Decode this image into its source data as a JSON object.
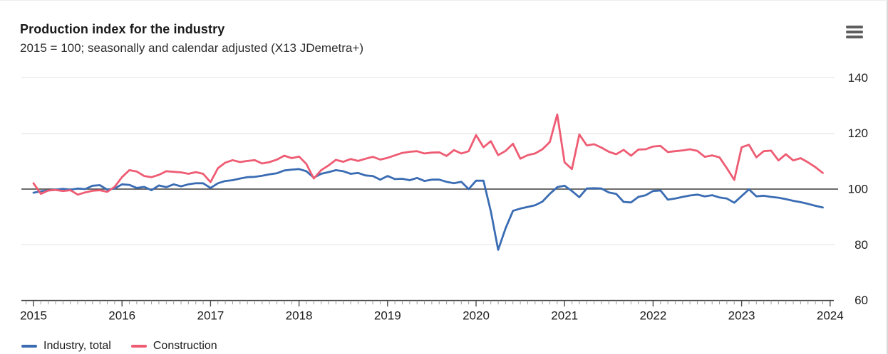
{
  "header": {
    "title": "Production index for the industry",
    "subtitle": "2015 = 100; seasonally and calendar adjusted (X13 JDemetra+)",
    "menu_icon": "hamburger-icon"
  },
  "chart_data": {
    "type": "line",
    "title": "Production index for the industry",
    "subtitle": "2015 = 100; seasonally and calendar adjusted (X13 JDemetra+)",
    "frequency": "monthly",
    "x_range": {
      "start": "2015-01",
      "end": "2023-12"
    },
    "x_tick_years": [
      2015,
      2016,
      2017,
      2018,
      2019,
      2020,
      2021,
      2022,
      2023,
      2024
    ],
    "y_ticks": [
      60,
      80,
      100,
      120,
      140
    ],
    "ylim": [
      60,
      145
    ],
    "baseline": 100,
    "grid": true,
    "legend_position": "bottom-left",
    "colors": {
      "grid": "#eaeaea",
      "baseline": "#3b3b3b",
      "axis": "#3b3b3b",
      "minor_tick": "#9a9a9a",
      "major_tick": "#4d4d4d",
      "tick_label": "#1d1d1d"
    },
    "series": [
      {
        "name": "Industry, total",
        "color": "#3a6cb3",
        "values": [
          98.7,
          99.2,
          99.5,
          99.8,
          100.1,
          99.8,
          100.2,
          100.0,
          101.2,
          101.4,
          99.8,
          100.2,
          101.7,
          101.5,
          100.4,
          100.8,
          99.6,
          101.3,
          100.7,
          101.7,
          101.0,
          101.7,
          102.1,
          102.1,
          100.4,
          102.1,
          102.9,
          103.2,
          103.8,
          104.3,
          104.4,
          104.8,
          105.3,
          105.7,
          106.7,
          107.0,
          107.2,
          106.4,
          104.1,
          105.5,
          106.1,
          106.8,
          106.4,
          105.5,
          105.8,
          104.9,
          104.7,
          103.4,
          104.7,
          103.6,
          103.7,
          103.2,
          104.0,
          102.9,
          103.4,
          103.4,
          102.6,
          102.1,
          102.6,
          100.0,
          103.0,
          103.0,
          92.0,
          78.2,
          85.9,
          92.2,
          93.0,
          93.6,
          94.2,
          95.5,
          98.3,
          100.7,
          101.2,
          99.3,
          97.1,
          100.2,
          100.3,
          100.2,
          98.8,
          98.3,
          95.4,
          95.2,
          97.2,
          97.8,
          99.3,
          99.5,
          96.2,
          96.6,
          97.2,
          97.7,
          98.0,
          97.4,
          97.8,
          97.0,
          96.6,
          95.1,
          97.5,
          99.9,
          97.4,
          97.6,
          97.2,
          96.9,
          96.4,
          95.8,
          95.3,
          94.7,
          94.0,
          93.4
        ]
      },
      {
        "name": "Construction",
        "color": "#ee5c73",
        "values": [
          102.1,
          98.3,
          99.5,
          99.7,
          99.3,
          99.6,
          98.0,
          98.8,
          99.4,
          99.6,
          99.0,
          100.8,
          104.3,
          106.8,
          106.3,
          104.7,
          104.3,
          105.1,
          106.4,
          106.2,
          106.0,
          105.5,
          106.1,
          105.5,
          102.5,
          107.5,
          109.5,
          110.4,
          109.7,
          110.1,
          110.4,
          109.2,
          109.7,
          110.6,
          112.0,
          111.1,
          111.7,
          109.0,
          103.8,
          106.8,
          108.5,
          110.5,
          109.8,
          110.8,
          110.1,
          110.9,
          111.6,
          110.6,
          111.2,
          112.1,
          113.0,
          113.4,
          113.6,
          112.8,
          113.1,
          113.2,
          111.9,
          114.0,
          112.8,
          113.6,
          119.4,
          115.0,
          117.2,
          112.2,
          113.7,
          116.3,
          110.9,
          112.2,
          112.8,
          114.3,
          116.9,
          126.8,
          109.6,
          107.2,
          119.6,
          115.7,
          116.1,
          114.9,
          113.4,
          112.5,
          114.1,
          112.0,
          114.2,
          114.3,
          115.3,
          115.5,
          113.3,
          113.6,
          113.9,
          114.3,
          113.7,
          111.6,
          112.1,
          111.4,
          107.5,
          103.3,
          115.0,
          115.9,
          111.4,
          113.6,
          113.8,
          110.3,
          112.5,
          110.3,
          111.1,
          109.6,
          107.9,
          105.8
        ]
      }
    ]
  }
}
